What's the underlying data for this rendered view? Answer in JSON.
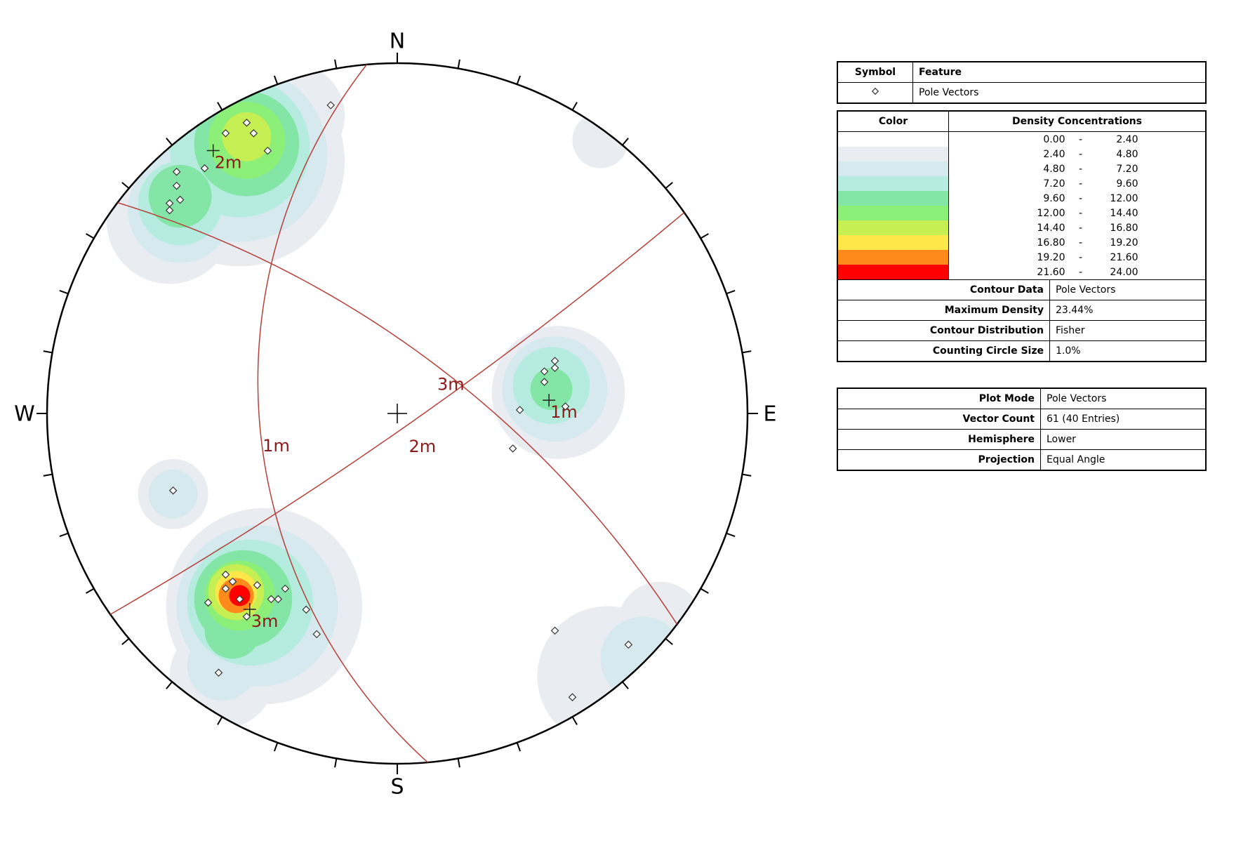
{
  "chart_data": {
    "type": "stereonet",
    "direction_labels": [
      "N",
      "E",
      "S",
      "W"
    ],
    "azimuth_ticks": [
      0,
      10,
      20,
      30,
      40,
      50,
      60,
      70,
      80,
      90,
      100,
      110,
      120,
      130,
      140,
      150,
      160,
      170,
      180,
      190,
      200,
      210,
      220,
      230,
      240,
      250,
      260,
      270,
      280,
      290,
      300,
      310,
      320,
      330,
      340,
      350
    ],
    "poles": {
      "name": "Pole Vectors",
      "xlim": [
        -1,
        1
      ],
      "ylim": [
        -1,
        1
      ],
      "x": [
        -0.19,
        -0.49,
        -0.43,
        -0.41,
        -0.37,
        -0.55,
        -0.63,
        -0.63,
        -0.62,
        -0.65,
        -0.65,
        0.45,
        0.45,
        0.42,
        0.42,
        0.48,
        0.35,
        0.33,
        -0.64,
        -0.49,
        -0.47,
        -0.4,
        -0.49,
        -0.32,
        -0.36,
        -0.34,
        -0.54,
        -0.45,
        -0.43,
        -0.26,
        -0.23,
        -0.51,
        0.45,
        0.66,
        0.5
      ],
      "y": [
        0.88,
        0.8,
        0.83,
        0.8,
        0.75,
        0.7,
        0.69,
        0.65,
        0.61,
        0.6,
        0.58,
        0.15,
        0.13,
        0.12,
        0.09,
        0.02,
        0.01,
        -0.1,
        -0.22,
        -0.46,
        -0.48,
        -0.49,
        -0.5,
        -0.5,
        -0.53,
        -0.53,
        -0.54,
        -0.53,
        -0.58,
        -0.56,
        -0.63,
        -0.74,
        -0.62,
        -0.66,
        -0.81
      ]
    },
    "planes": [
      {
        "name": "1m",
        "dip_direction": 265,
        "dip": 47,
        "color": "#b5403a"
      },
      {
        "name": "2m",
        "dip_direction": 145,
        "dip": 85,
        "color": "#b5403a"
      },
      {
        "name": "3m",
        "dip_direction": 37,
        "dip": 70,
        "color": "#b5403a"
      }
    ],
    "density": {
      "levels": [
        {
          "value": 0,
          "label": "0.00"
        },
        {
          "value": 2.4,
          "label": "2.40"
        },
        {
          "value": 4.8,
          "label": "4.80"
        },
        {
          "value": 7.2,
          "label": "7.20"
        },
        {
          "value": 9.6,
          "label": "9.60"
        },
        {
          "value": 12,
          "label": "12.00"
        },
        {
          "value": 14.4,
          "label": "14.40"
        },
        {
          "value": 16.8,
          "label": "16.80"
        },
        {
          "value": 19.2,
          "label": "19.20"
        },
        {
          "value": 21.6,
          "label": "21.60"
        },
        {
          "value": 24,
          "label": "24.00"
        }
      ],
      "colors": [
        "#ffffff",
        "#e9ecf1",
        "#d6e9ef",
        "#b6ecdf",
        "#84e6a6",
        "#8cef78",
        "#c5ef52",
        "#ffe74a",
        "#ff8a1c",
        "#ff0000"
      ],
      "patches": [
        {
          "x": -0.45,
          "y": 0.72,
          "r": 0.3,
          "level": 2.4
        },
        {
          "x": -0.65,
          "y": 0.55,
          "r": 0.18,
          "level": 2.4
        },
        {
          "x": -0.3,
          "y": 0.85,
          "r": 0.15,
          "level": 2.4
        },
        {
          "x": 0.46,
          "y": 0.06,
          "r": 0.19,
          "level": 2.4
        },
        {
          "x": -0.64,
          "y": -0.23,
          "r": 0.1,
          "level": 2.4
        },
        {
          "x": -0.38,
          "y": -0.55,
          "r": 0.28,
          "level": 2.4
        },
        {
          "x": -0.5,
          "y": -0.75,
          "r": 0.15,
          "level": 2.4
        },
        {
          "x": 0.6,
          "y": -0.75,
          "r": 0.2,
          "level": 2.4
        },
        {
          "x": 0.75,
          "y": -0.6,
          "r": 0.12,
          "level": 2.4
        },
        {
          "x": 0.58,
          "y": 0.78,
          "r": 0.08,
          "level": 2.4
        },
        {
          "x": -0.45,
          "y": 0.74,
          "r": 0.25,
          "level": 4.8
        },
        {
          "x": -0.62,
          "y": 0.58,
          "r": 0.15,
          "level": 4.8
        },
        {
          "x": 0.45,
          "y": 0.07,
          "r": 0.15,
          "level": 4.8
        },
        {
          "x": -0.64,
          "y": -0.23,
          "r": 0.07,
          "level": 4.8
        },
        {
          "x": -0.4,
          "y": -0.55,
          "r": 0.23,
          "level": 4.8
        },
        {
          "x": -0.5,
          "y": -0.72,
          "r": 0.1,
          "level": 4.8
        },
        {
          "x": 0.7,
          "y": -0.7,
          "r": 0.12,
          "level": 4.8
        },
        {
          "x": -0.45,
          "y": 0.76,
          "r": 0.2,
          "level": 7.2
        },
        {
          "x": -0.62,
          "y": 0.6,
          "r": 0.12,
          "level": 7.2
        },
        {
          "x": 0.44,
          "y": 0.08,
          "r": 0.11,
          "level": 7.2
        },
        {
          "x": -0.42,
          "y": -0.54,
          "r": 0.18,
          "level": 7.2
        },
        {
          "x": -0.43,
          "y": 0.77,
          "r": 0.15,
          "level": 9.6
        },
        {
          "x": -0.62,
          "y": 0.62,
          "r": 0.09,
          "level": 9.6
        },
        {
          "x": 0.44,
          "y": 0.07,
          "r": 0.06,
          "level": 9.6
        },
        {
          "x": -0.44,
          "y": -0.53,
          "r": 0.14,
          "level": 9.6
        },
        {
          "x": -0.47,
          "y": -0.62,
          "r": 0.08,
          "level": 9.6
        },
        {
          "x": -0.43,
          "y": 0.78,
          "r": 0.11,
          "level": 12
        },
        {
          "x": -0.45,
          "y": -0.52,
          "r": 0.1,
          "level": 12
        },
        {
          "x": -0.43,
          "y": 0.79,
          "r": 0.07,
          "level": 14.4
        },
        {
          "x": -0.46,
          "y": -0.51,
          "r": 0.08,
          "level": 14.4
        },
        {
          "x": -0.46,
          "y": -0.51,
          "r": 0.06,
          "level": 16.8
        },
        {
          "x": -0.46,
          "y": -0.52,
          "r": 0.05,
          "level": 19.2
        },
        {
          "x": -0.45,
          "y": -0.52,
          "r": 0.03,
          "level": 21.6
        }
      ]
    },
    "legend": {
      "symbol_header": "Symbol",
      "feature_header": "Feature",
      "color_header": "Color",
      "density_header": "Density Concentrations",
      "range_separator": "-"
    },
    "contour_info": [
      {
        "key": "Contour Data",
        "value": "Pole Vectors"
      },
      {
        "key": "Maximum Density",
        "value": "23.44%"
      },
      {
        "key": "Contour Distribution",
        "value": "Fisher"
      },
      {
        "key": "Counting Circle Size",
        "value": "1.0%"
      }
    ],
    "plot_info": [
      {
        "key": "Plot Mode",
        "value": "Pole Vectors"
      },
      {
        "key": "Vector Count",
        "value": "61 (40 Entries)"
      },
      {
        "key": "Hemisphere",
        "value": "Lower"
      },
      {
        "key": "Projection",
        "value": "Equal Angle"
      }
    ]
  }
}
